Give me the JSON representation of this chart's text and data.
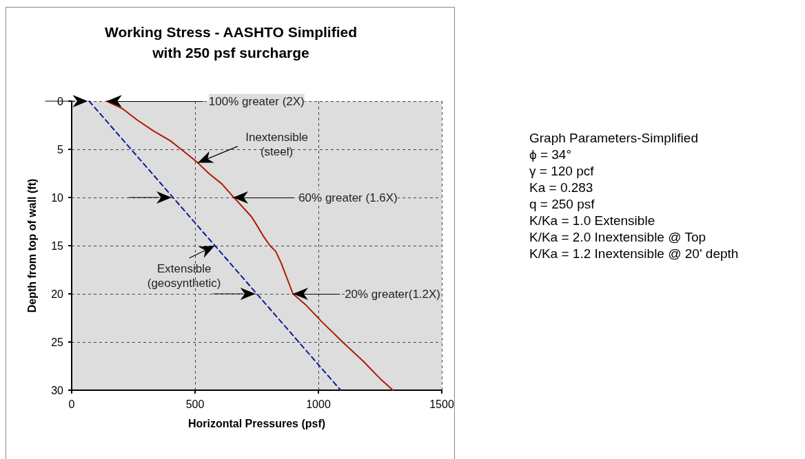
{
  "chart_data": {
    "type": "line",
    "title": "Working Stress - AASHTO Simplified\nwith 250 psf surcharge",
    "xlabel": "Horizontal Pressures (psf)",
    "ylabel": "Depth from top of wall (ft)",
    "series": [
      {
        "color": "#b01800",
        "line_style": "solid",
        "x": [
          142,
          207,
          268,
          332,
          399,
          444,
          478,
          511,
          556,
          609,
          654,
          729,
          751,
          779,
          804,
          827,
          849,
          897,
          947,
          1014,
          1098,
          1182,
          1254,
          1302
        ],
        "values": [
          0,
          0.8,
          2,
          3.1,
          4.1,
          5,
          5.7,
          6.4,
          7.5,
          8.6,
          9.9,
          12,
          12.9,
          14.1,
          15,
          15.6,
          16.8,
          20,
          21.1,
          22.9,
          25,
          27,
          28.9,
          30
        ]
      },
      {
        "color": "#0a1a9a",
        "line_style": "dashed",
        "x": [
          71,
          1090
        ],
        "values": [
          0,
          30
        ]
      }
    ],
    "xlim": [
      0,
      1500
    ],
    "xticks": [
      0,
      500,
      1000,
      1500
    ],
    "ylim": [
      30,
      0
    ],
    "yticks": [
      0,
      5,
      10,
      15,
      20,
      25,
      30
    ],
    "grid": true,
    "marker": "none",
    "annotations": [
      {
        "text": "100% greater (2X)",
        "x": 142,
        "y": 0
      },
      {
        "text": "Inextensible\n(steel)",
        "x": 511,
        "y": 6.4
      },
      {
        "text": "60% greater (1.6X)",
        "x": 654,
        "y": 10
      },
      {
        "text": "Extensible\n(geosynthetic)",
        "x": 580,
        "y": 15
      },
      {
        "text": "20% greater(1.2X)",
        "x": 897,
        "y": 20
      },
      "Graph Parameters-Simplified",
      "ϕ = 34°",
      "γ = 120 pcf",
      "Ka = 0.283",
      "q = 250 psf",
      "K/Ka = 1.0 Extensible",
      "K/Ka = 2.0 Inextensible @ Top",
      "K/Ka = 1.2 Inextensible @ 20' depth"
    ]
  }
}
